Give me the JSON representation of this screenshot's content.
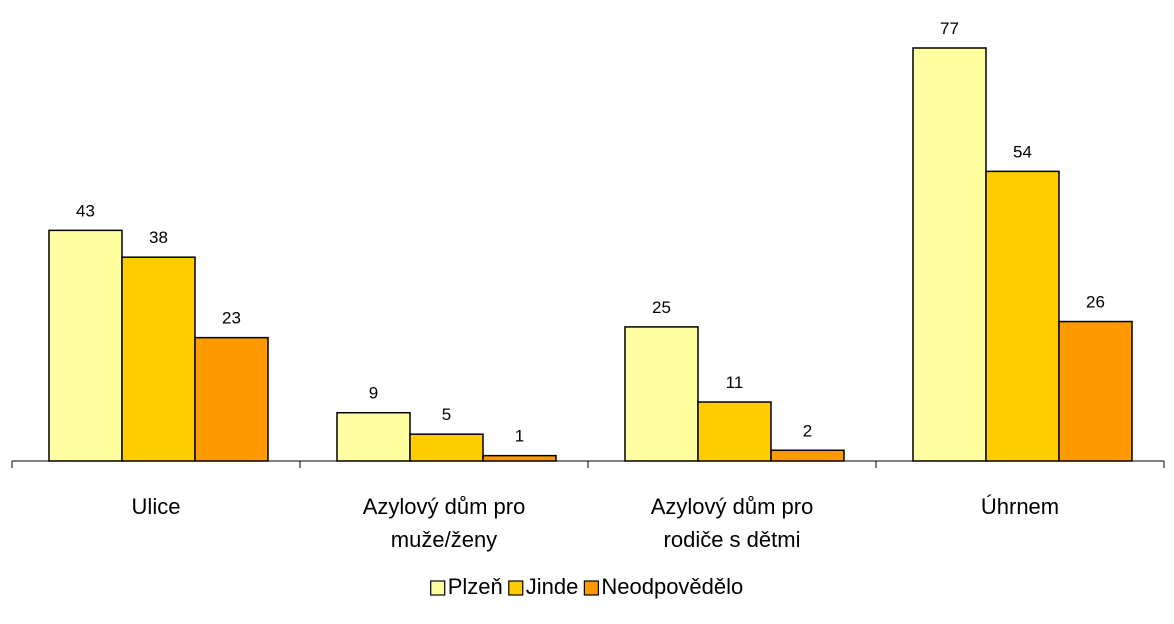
{
  "chart_data": {
    "type": "bar",
    "categories": [
      [
        "Ulice"
      ],
      [
        "Azylový dům pro",
        "muže/ženy"
      ],
      [
        "Azylový dům pro",
        "rodiče s dětmi"
      ],
      [
        "Úhrnem"
      ]
    ],
    "series": [
      {
        "name": "Plzeň",
        "values": [
          43,
          9,
          25,
          77
        ],
        "color": "#FFFFA0"
      },
      {
        "name": "Jinde",
        "values": [
          38,
          5,
          11,
          54
        ],
        "color": "#FFCC00"
      },
      {
        "name": "Neodpovědělo",
        "values": [
          23,
          1,
          2,
          26
        ],
        "color": "#FF9900"
      }
    ],
    "ylim": [
      0,
      77
    ],
    "grid": false,
    "legend_position": "bottom",
    "data_labels": true
  }
}
